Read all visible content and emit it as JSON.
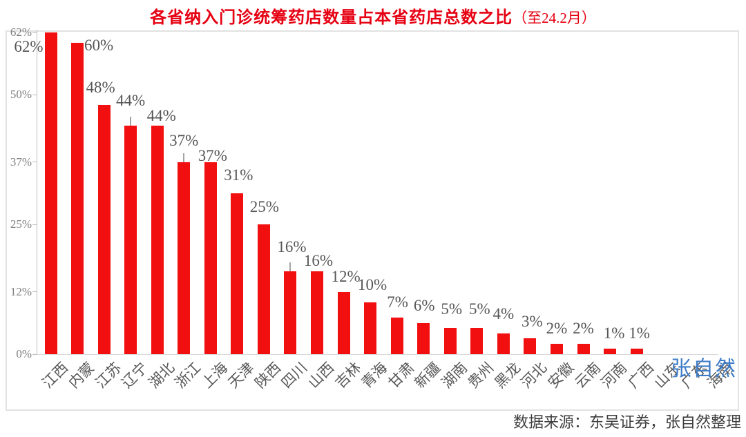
{
  "title": {
    "main": "各省纳入门诊统筹药店数量占本省药店总数之比",
    "suffix": "（至24.2月）"
  },
  "source_note": "数据来源：东吴证券，张自然整理",
  "watermark": "张自然",
  "colors": {
    "bar": "#f20f0f",
    "title": "#e60012",
    "watermark": "#3d7cc9",
    "axis_text": "#7f7f7f",
    "value_label_text": "#565656",
    "x_label_text": "#595959",
    "source_text": "#3d3d3d",
    "frame_border": "#e2e2e2"
  },
  "chart_data": {
    "type": "bar",
    "title": "各省纳入门诊统筹药店数量占本省药店总数之比（至24.2月）",
    "xlabel": "",
    "ylabel": "",
    "unit": "%",
    "categories": [
      "江西",
      "内蒙",
      "江苏",
      "辽宁",
      "湖北",
      "浙江",
      "上海",
      "天津",
      "陕西",
      "四川",
      "山西",
      "吉林",
      "青海",
      "甘肃",
      "新疆",
      "湖南",
      "贵州",
      "黑龙",
      "河北",
      "安徽",
      "云南",
      "河南",
      "广西",
      "山东",
      "广东",
      "海南"
    ],
    "values": [
      62,
      60,
      48,
      44,
      44,
      37,
      37,
      31,
      25,
      16,
      16,
      12,
      10,
      7,
      6,
      5,
      5,
      4,
      3,
      2,
      2,
      1,
      1,
      0,
      0,
      0
    ],
    "data_labels": [
      "62%",
      "60%",
      "48%",
      "44%",
      "44%",
      "37%",
      "37%",
      "31%",
      "25%",
      "16%",
      "16%",
      "12%",
      "10%",
      "7%",
      "6%",
      "5%",
      "5%",
      "4%",
      "3%",
      "2%",
      "2%",
      "1%",
      "1%"
    ],
    "y_ticks": {
      "values": [
        0,
        12,
        25,
        37,
        50,
        62
      ],
      "labels": [
        "0%",
        "12%",
        "25%",
        "37%",
        "50%",
        "62%"
      ]
    },
    "ylim": [
      0,
      62
    ],
    "grid": false,
    "legend": "none",
    "layout": {
      "whisker_indices": [
        3,
        5,
        9
      ],
      "label_dx": [
        -32,
        31,
        -5,
        0,
        6,
        0,
        3,
        2,
        1,
        2,
        2,
        3,
        3,
        1,
        1,
        2,
        4,
        0,
        3,
        0,
        0,
        6,
        4
      ],
      "label_gap": [
        -33,
        -16,
        13,
        24,
        2,
        19,
        -3,
        14,
        13,
        23,
        3,
        10,
        13,
        10,
        13,
        15,
        15,
        16,
        12,
        10,
        10,
        10,
        10
      ]
    }
  }
}
